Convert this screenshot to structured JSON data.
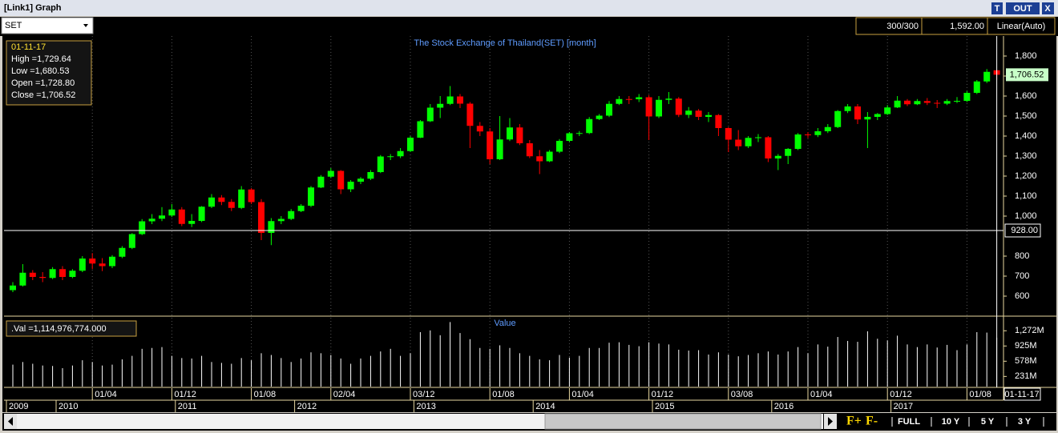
{
  "window": {
    "title": "[Link1] Graph",
    "buttons": [
      "T",
      "OUT",
      "X"
    ],
    "symbol": "SET",
    "count": "300/300",
    "cursor_price": "1,592.00",
    "scale_mode": "Linear(Auto)",
    "tooltip": {
      "date": "01-11-17",
      "lines": [
        "High =1,729.64",
        "Low =1,680.53",
        "Open =1,728.80",
        "Close =1,706.52"
      ]
    },
    "volume_tooltip": ".Val =1,114,976,774.000",
    "zoom": [
      "F+",
      "F-"
    ],
    "ranges": [
      "FULL",
      "10 Y",
      "5 Y",
      "3 Y"
    ]
  },
  "date_axis": {
    "categories": [
      null,
      null,
      null,
      null,
      null,
      null,
      null,
      null,
      "01/04",
      null,
      null,
      null,
      null,
      null,
      null,
      null,
      "01/12",
      null,
      null,
      null,
      null,
      null,
      null,
      null,
      "01/08",
      null,
      null,
      null,
      null,
      null,
      null,
      null,
      "02/04",
      null,
      null,
      null,
      null,
      null,
      null,
      null,
      "03/12",
      null,
      null,
      null,
      null,
      null,
      null,
      null,
      "01/08",
      null,
      null,
      null,
      null,
      null,
      null,
      null,
      "01/04",
      null,
      null,
      null,
      null,
      null,
      null,
      null,
      "01/12",
      null,
      null,
      null,
      null,
      null,
      null,
      null,
      "03/08",
      null,
      null,
      null,
      null,
      null,
      null,
      null,
      "01/04",
      null,
      null,
      null,
      null,
      null,
      null,
      null,
      "01/12",
      null,
      null,
      null,
      null,
      null,
      null,
      null,
      "01/08",
      null,
      null,
      null
    ],
    "years": [
      "2009",
      null,
      null,
      null,
      null,
      "2010",
      null,
      null,
      null,
      null,
      null,
      null,
      null,
      null,
      null,
      null,
      null,
      "2011",
      null,
      null,
      null,
      null,
      null,
      null,
      null,
      null,
      null,
      null,
      null,
      "2012",
      null,
      null,
      null,
      null,
      null,
      null,
      null,
      null,
      null,
      null,
      null,
      "2013",
      null,
      null,
      null,
      null,
      null,
      null,
      null,
      null,
      null,
      null,
      null,
      "2014",
      null,
      null,
      null,
      null,
      null,
      null,
      null,
      null,
      null,
      null,
      null,
      "2015",
      null,
      null,
      null,
      null,
      null,
      null,
      null,
      null,
      null,
      null,
      null,
      "2016",
      null,
      null,
      null,
      null,
      null,
      null,
      null,
      null,
      null,
      null,
      null,
      "2017",
      null,
      null,
      null,
      null,
      null,
      null,
      null,
      null,
      null,
      null
    ],
    "current": "01-11-17"
  },
  "chart_data": [
    {
      "type": "candlestick",
      "title": "The Stock Exchange of Thailand(SET) [month]",
      "up_color": "#00ff00",
      "down_color": "#ff0000",
      "open": [
        630,
        653,
        717,
        696,
        691,
        735,
        696,
        727,
        788,
        763,
        750,
        797,
        841,
        910,
        974,
        987,
        1003,
        1033,
        961,
        976,
        1047,
        1093,
        1071,
        1041,
        1133,
        1070,
        916,
        975,
        986,
        1025,
        1052,
        1143,
        1197,
        1226,
        1134,
        1172,
        1187,
        1220,
        1298,
        1299,
        1325,
        1392,
        1474,
        1542,
        1561,
        1598,
        1562,
        1451,
        1423,
        1284,
        1383,
        1443,
        1364,
        1299,
        1274,
        1322,
        1376,
        1414,
        1415,
        1485,
        1502,
        1561,
        1585,
        1584,
        1594,
        1498,
        1581,
        1587,
        1506,
        1527,
        1496,
        1505,
        1440,
        1382,
        1349,
        1391,
        1394,
        1288,
        1301,
        1336,
        1408,
        1405,
        1424,
        1445,
        1525,
        1548,
        1483,
        1496,
        1510,
        1543,
        1577,
        1559,
        1575,
        1566,
        1562,
        1575,
        1576,
        1616,
        1673,
        1728.8
      ],
      "high": [
        670,
        760,
        730,
        720,
        745,
        750,
        735,
        800,
        815,
        790,
        805,
        850,
        915,
        985,
        1010,
        1045,
        1060,
        1045,
        1010,
        1050,
        1110,
        1105,
        1085,
        1150,
        1140,
        1085,
        990,
        1000,
        1035,
        1060,
        1150,
        1205,
        1240,
        1230,
        1180,
        1195,
        1230,
        1305,
        1310,
        1340,
        1400,
        1480,
        1560,
        1600,
        1650,
        1610,
        1570,
        1470,
        1440,
        1500,
        1490,
        1460,
        1380,
        1330,
        1330,
        1385,
        1420,
        1425,
        1495,
        1510,
        1575,
        1600,
        1600,
        1610,
        1605,
        1600,
        1620,
        1595,
        1545,
        1535,
        1520,
        1510,
        1445,
        1430,
        1400,
        1410,
        1400,
        1310,
        1340,
        1415,
        1420,
        1440,
        1460,
        1530,
        1560,
        1560,
        1520,
        1515,
        1555,
        1600,
        1585,
        1585,
        1590,
        1580,
        1585,
        1595,
        1625,
        1680,
        1735,
        1729.64
      ],
      "low": [
        620,
        648,
        680,
        670,
        685,
        680,
        690,
        720,
        735,
        725,
        740,
        790,
        835,
        905,
        960,
        975,
        995,
        950,
        945,
        970,
        1040,
        1055,
        1025,
        1035,
        1060,
        880,
        855,
        960,
        980,
        1020,
        1045,
        1140,
        1190,
        1110,
        1120,
        1160,
        1180,
        1215,
        1280,
        1290,
        1320,
        1390,
        1470,
        1490,
        1555,
        1540,
        1340,
        1400,
        1260,
        1280,
        1375,
        1355,
        1290,
        1210,
        1270,
        1315,
        1370,
        1400,
        1410,
        1480,
        1495,
        1555,
        1560,
        1570,
        1380,
        1490,
        1560,
        1495,
        1490,
        1480,
        1470,
        1400,
        1320,
        1330,
        1340,
        1370,
        1270,
        1230,
        1260,
        1330,
        1390,
        1395,
        1415,
        1440,
        1515,
        1460,
        1340,
        1480,
        1505,
        1540,
        1550,
        1555,
        1555,
        1540,
        1555,
        1565,
        1570,
        1610,
        1665,
        1680.53
      ],
      "close": [
        653,
        717,
        696,
        691,
        735,
        696,
        727,
        788,
        763,
        750,
        797,
        841,
        910,
        974,
        987,
        1003,
        1033,
        961,
        976,
        1047,
        1093,
        1071,
        1041,
        1133,
        1070,
        916,
        975,
        986,
        1025,
        1052,
        1143,
        1197,
        1226,
        1134,
        1172,
        1187,
        1220,
        1298,
        1299,
        1325,
        1392,
        1474,
        1542,
        1561,
        1598,
        1562,
        1451,
        1423,
        1284,
        1383,
        1443,
        1364,
        1299,
        1274,
        1322,
        1376,
        1414,
        1415,
        1485,
        1502,
        1561,
        1585,
        1584,
        1594,
        1498,
        1581,
        1587,
        1506,
        1527,
        1496,
        1505,
        1440,
        1382,
        1349,
        1391,
        1394,
        1288,
        1301,
        1336,
        1408,
        1405,
        1424,
        1445,
        1525,
        1548,
        1483,
        1496,
        1510,
        1543,
        1577,
        1559,
        1575,
        1566,
        1562,
        1575,
        1576,
        1616,
        1673,
        1721,
        1706.52
      ],
      "last_label": "1,706.52",
      "crosshair": {
        "value": 928,
        "label": "928.00"
      },
      "ylim": [
        500,
        1900
      ],
      "yticks": [
        600,
        700,
        800,
        {
          "value": 1000,
          "label": "1,000"
        },
        {
          "value": 1100,
          "label": "1,100"
        },
        {
          "value": 1200,
          "label": "1,200"
        },
        {
          "value": 1300,
          "label": "1,300"
        },
        {
          "value": 1400,
          "label": "1,400"
        },
        {
          "value": 1500,
          "label": "1,500"
        },
        {
          "value": 1600,
          "label": "1,600"
        },
        {
          "value": 1700,
          "label": "1,700"
        },
        {
          "value": 1800,
          "label": "1,800"
        }
      ]
    },
    {
      "type": "bar",
      "title": "Value",
      "color": "#ffffff",
      "values": [
        500,
        560,
        520,
        480,
        470,
        420,
        480,
        600,
        560,
        480,
        500,
        620,
        700,
        860,
        880,
        900,
        700,
        650,
        640,
        700,
        560,
        540,
        520,
        650,
        600,
        760,
        720,
        650,
        560,
        640,
        780,
        760,
        720,
        640,
        520,
        640,
        700,
        800,
        860,
        700,
        760,
        1240,
        1280,
        1170,
        1470,
        1220,
        1080,
        880,
        860,
        940,
        880,
        760,
        700,
        620,
        600,
        720,
        660,
        700,
        880,
        880,
        1000,
        1010,
        950,
        920,
        1010,
        980,
        960,
        840,
        820,
        830,
        730,
        780,
        730,
        690,
        720,
        760,
        800,
        730,
        800,
        900,
        760,
        960,
        910,
        1130,
        1040,
        1020,
        1260,
        1090,
        1050,
        1160,
        960,
        900,
        960,
        890,
        950,
        830,
        960,
        1240,
        1230,
        1114.976774
      ],
      "ylim": [
        0,
        1550
      ],
      "yticks": [
        {
          "value": 231,
          "label": "231M"
        },
        {
          "value": 578,
          "label": "578M"
        },
        {
          "value": 925,
          "label": "925M"
        },
        {
          "value": 1272,
          "label": "1,272M"
        }
      ]
    }
  ]
}
